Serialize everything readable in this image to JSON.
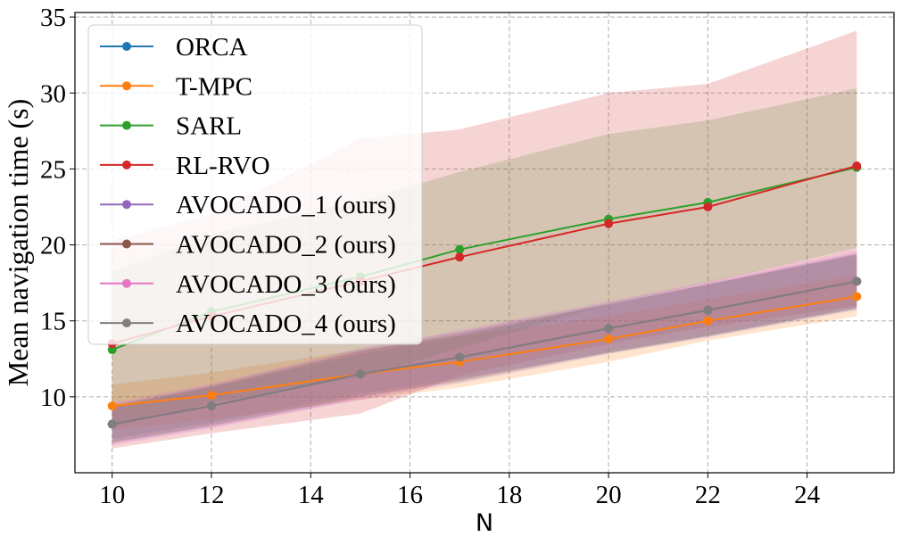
{
  "chart_data": {
    "type": "line",
    "title": "",
    "xlabel": "N",
    "ylabel": "Mean navigation time (s)",
    "xlim": [
      9.25,
      25.75
    ],
    "ylim": [
      5.0,
      35.3
    ],
    "xticks": [
      10,
      12,
      14,
      16,
      18,
      20,
      22,
      24
    ],
    "yticks": [
      10,
      15,
      20,
      25,
      30,
      35
    ],
    "grid": true,
    "legend_position": "top-left",
    "x": [
      10,
      12,
      15,
      17,
      20,
      22,
      25
    ],
    "series": [
      {
        "name": "ORCA",
        "color": "#1f77b4",
        "values": [
          8.2,
          9.4,
          11.5,
          12.6,
          14.5,
          15.7,
          17.6
        ],
        "lower": [
          7.2,
          8.3,
          10.2,
          11.2,
          12.9,
          14.0,
          15.8
        ],
        "upper": [
          9.3,
          10.6,
          12.8,
          14.0,
          16.1,
          17.4,
          19.4
        ]
      },
      {
        "name": "T-MPC",
        "color": "#ff7f0e",
        "values": [
          9.4,
          10.1,
          11.5,
          12.3,
          13.8,
          15.0,
          16.6
        ],
        "lower": [
          7.8,
          8.5,
          9.8,
          10.6,
          12.3,
          13.7,
          15.3
        ],
        "upper": [
          10.8,
          11.6,
          13.1,
          14.0,
          15.3,
          16.4,
          18.0
        ]
      },
      {
        "name": "SARL",
        "color": "#2ca02c",
        "values": [
          13.1,
          15.6,
          17.9,
          19.7,
          21.7,
          22.8,
          25.1
        ],
        "lower": [
          8.0,
          9.6,
          11.3,
          13.2,
          16.1,
          17.5,
          19.8
        ],
        "upper": [
          18.2,
          20.7,
          22.9,
          24.8,
          27.3,
          28.2,
          30.3
        ]
      },
      {
        "name": "RL-RVO",
        "color": "#d62728",
        "values": [
          13.5,
          15.3,
          17.6,
          19.2,
          21.4,
          22.5,
          25.2
        ],
        "lower": [
          6.6,
          7.6,
          8.9,
          11.4,
          13.5,
          14.6,
          16.0
        ],
        "upper": [
          20.3,
          22.0,
          27.0,
          27.6,
          30.0,
          30.6,
          34.1
        ]
      },
      {
        "name": "AVOCADO_1 (ours)",
        "color": "#9467bd",
        "values": [
          8.2,
          9.4,
          11.5,
          12.6,
          14.5,
          15.7,
          17.6
        ],
        "lower": [
          6.9,
          8.0,
          9.8,
          10.9,
          12.8,
          13.9,
          15.7
        ],
        "upper": [
          9.5,
          10.8,
          13.2,
          14.3,
          16.2,
          17.5,
          19.5
        ]
      },
      {
        "name": "AVOCADO_2 (ours)",
        "color": "#8c564b",
        "values": [
          8.2,
          9.4,
          11.5,
          12.6,
          14.5,
          15.7,
          17.6
        ],
        "lower": [
          7.0,
          8.1,
          10.0,
          11.0,
          12.9,
          14.0,
          15.8
        ],
        "upper": [
          9.4,
          10.7,
          13.0,
          14.2,
          16.1,
          17.4,
          19.4
        ]
      },
      {
        "name": "AVOCADO_3 (ours)",
        "color": "#e377c2",
        "values": [
          8.2,
          9.4,
          11.5,
          12.6,
          14.5,
          15.7,
          17.6
        ],
        "lower": [
          6.8,
          7.9,
          9.9,
          11.1,
          13.0,
          14.1,
          15.9
        ],
        "upper": [
          9.6,
          10.9,
          13.1,
          14.4,
          16.3,
          17.6,
          19.7
        ]
      },
      {
        "name": "AVOCADO_4 (ours)",
        "color": "#7f7f7f",
        "values": [
          8.2,
          9.4,
          11.5,
          12.6,
          14.5,
          15.7,
          17.6
        ],
        "lower": [
          7.0,
          8.1,
          10.0,
          11.1,
          12.9,
          14.0,
          15.9
        ],
        "upper": [
          9.4,
          10.7,
          13.0,
          14.1,
          16.1,
          17.4,
          19.3
        ]
      }
    ]
  }
}
